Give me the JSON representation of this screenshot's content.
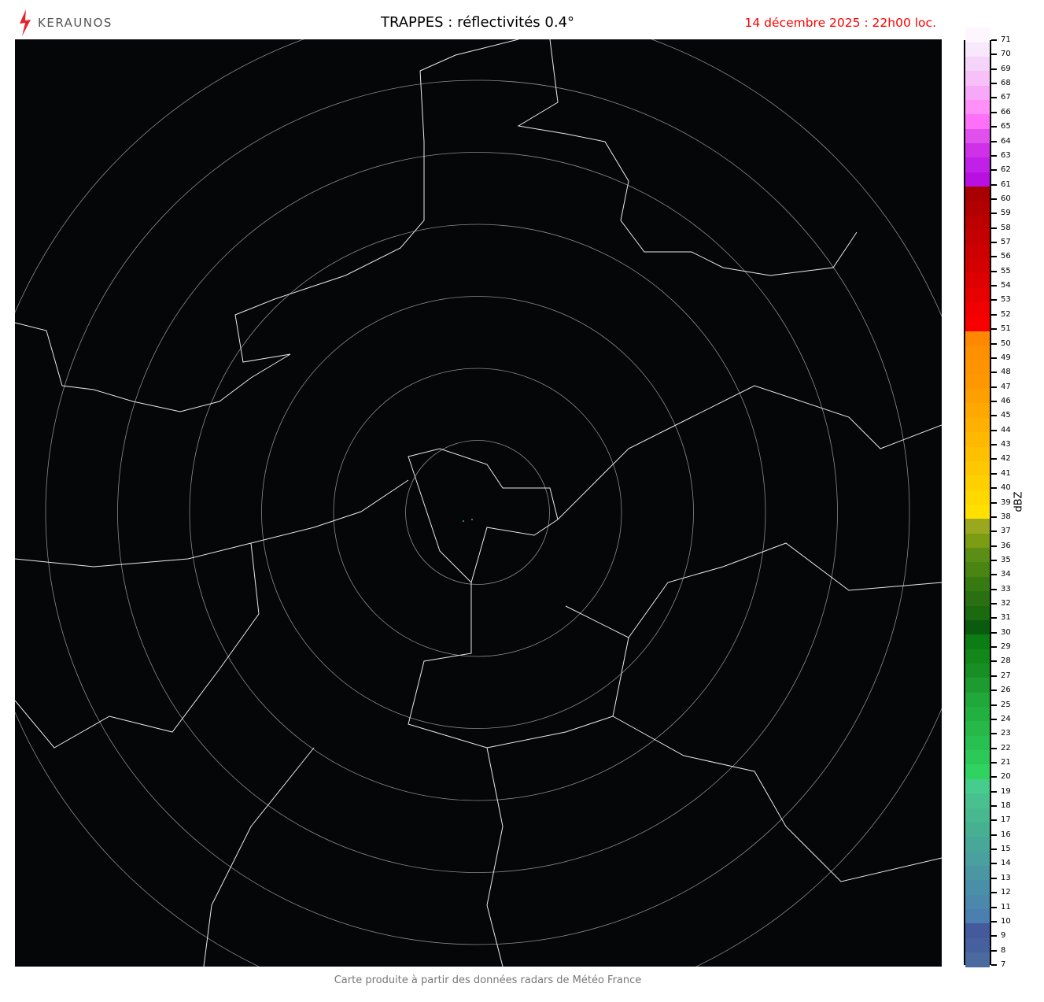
{
  "header": {
    "logo_text": "KERAUNOS",
    "title": "TRAPPES : réflectivités 0.4°",
    "date": "14 décembre 2025 : 22h00 loc."
  },
  "map": {
    "background": "#050608",
    "radar_site": "TRAPPES",
    "range_rings": 7,
    "echoes": "none significant"
  },
  "colorbar": {
    "unit": "dBZ",
    "min": 7,
    "max": 71,
    "ticks": [
      7,
      8,
      9,
      10,
      11,
      12,
      13,
      14,
      15,
      16,
      17,
      18,
      19,
      20,
      21,
      22,
      23,
      24,
      25,
      26,
      27,
      28,
      29,
      30,
      31,
      32,
      33,
      34,
      35,
      36,
      37,
      38,
      39,
      40,
      41,
      42,
      43,
      44,
      45,
      46,
      47,
      48,
      49,
      50,
      51,
      52,
      53,
      54,
      55,
      56,
      57,
      58,
      59,
      60,
      61,
      62,
      63,
      64,
      65,
      66,
      67,
      68,
      69,
      70,
      71
    ],
    "colors": [
      "#4a6aa0",
      "#46609e",
      "#445a9c",
      "#4a7fb0",
      "#4b88ac",
      "#4a8fa8",
      "#4a96a2",
      "#4aa09e",
      "#48a898",
      "#46b090",
      "#48b890",
      "#48c090",
      "#46cc8c",
      "#30d260",
      "#2cc858",
      "#28c050",
      "#26b848",
      "#22b040",
      "#20a83a",
      "#1c9c30",
      "#188f24",
      "#12881a",
      "#0c7c14",
      "#0a5a10",
      "#1c6a10",
      "#2a7012",
      "#387a12",
      "#4a8412",
      "#5a8e14",
      "#7c9c14",
      "#9aa820",
      "#ffe000",
      "#ffd800",
      "#ffd000",
      "#ffc800",
      "#ffc000",
      "#ffb800",
      "#ffb000",
      "#ffa800",
      "#ffa000",
      "#ff9800",
      "#ff9400",
      "#ff9000",
      "#ff8800",
      "#f80000",
      "#f00000",
      "#e60000",
      "#de0000",
      "#d40000",
      "#cc0000",
      "#c40000",
      "#bc0000",
      "#b20000",
      "#a80000",
      "#b810e0",
      "#c020e8",
      "#d030e8",
      "#e050ec",
      "#ff70f8",
      "#ff90f8",
      "#f8a8f8",
      "#f8c0f8",
      "#f4d4f8",
      "#f8e8fc",
      "#fdf6fe"
    ]
  },
  "footer": "Carte produite à partir des données radars de Météo France"
}
